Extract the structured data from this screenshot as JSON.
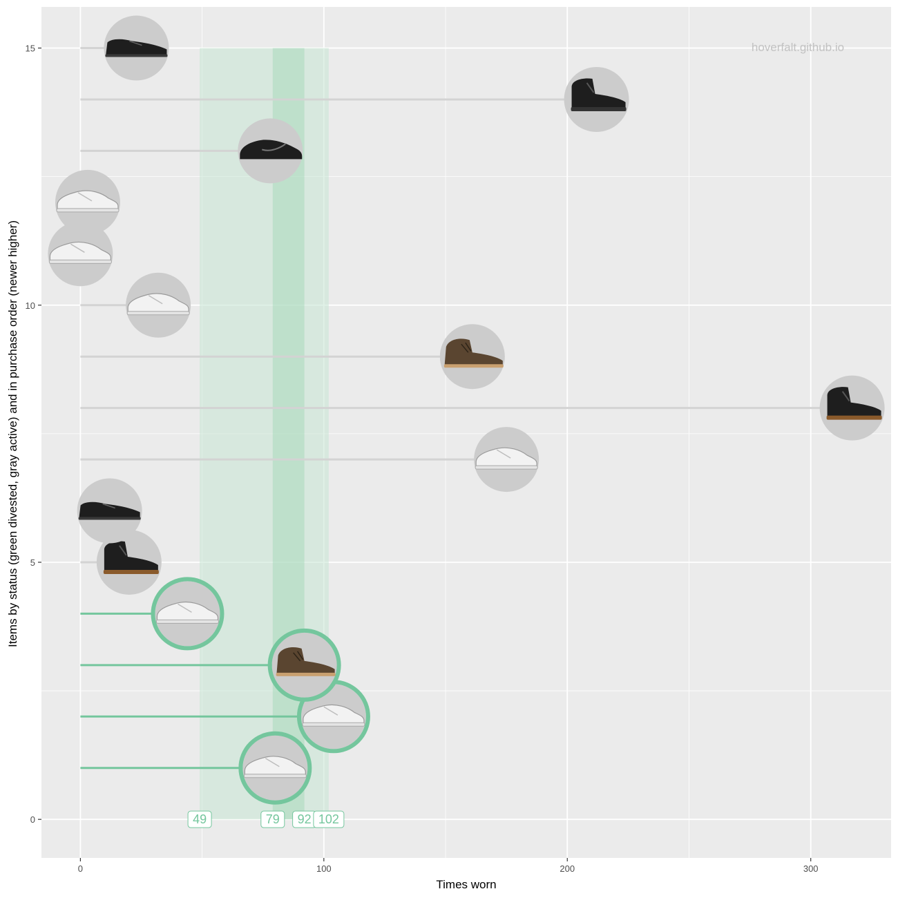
{
  "chart_data": {
    "type": "lollipop",
    "watermark": "hoverfalt.github.io",
    "xlabel": "Times worn",
    "ylabel": "Items by status (green divested, gray active) and in purchase order (newer higher)",
    "xlim": [
      -16,
      333
    ],
    "ylim": [
      -0.75,
      15.8
    ],
    "x_ticks": [
      0,
      100,
      200,
      300
    ],
    "y_ticks": [
      0,
      5,
      10,
      15
    ],
    "grid": true,
    "colors": {
      "panel": "#ebebeb",
      "grid": "#ffffff",
      "active": "#d3d3d3",
      "divested": "#74c69d",
      "band_light": "#c7e6d3",
      "band_dark": "#9fd6b4",
      "shoe_black": "#1e1e1e",
      "shoe_brown": "#5a4530",
      "shoe_white": "#f2f2f2"
    },
    "items": [
      {
        "y": 1,
        "x": 80,
        "status": "divested",
        "shoe": "white-sneaker"
      },
      {
        "y": 2,
        "x": 104,
        "status": "divested",
        "shoe": "white-sneaker"
      },
      {
        "y": 3,
        "x": 92,
        "status": "divested",
        "shoe": "brown-boot"
      },
      {
        "y": 4,
        "x": 44,
        "status": "divested",
        "shoe": "white-sneaker"
      },
      {
        "y": 5,
        "x": 20,
        "status": "active",
        "shoe": "black-boot"
      },
      {
        "y": 6,
        "x": 12,
        "status": "active",
        "shoe": "black-dress-shoe"
      },
      {
        "y": 7,
        "x": 175,
        "status": "active",
        "shoe": "white-sneaker"
      },
      {
        "y": 8,
        "x": 317,
        "status": "active",
        "shoe": "black-boot"
      },
      {
        "y": 9,
        "x": 161,
        "status": "active",
        "shoe": "brown-boot"
      },
      {
        "y": 10,
        "x": 32,
        "status": "active",
        "shoe": "white-sneaker"
      },
      {
        "y": 11,
        "x": 0,
        "status": "active",
        "shoe": "white-sneaker"
      },
      {
        "y": 12,
        "x": 3,
        "status": "active",
        "shoe": "white-sneaker"
      },
      {
        "y": 13,
        "x": 78,
        "status": "active",
        "shoe": "black-running-shoe"
      },
      {
        "y": 14,
        "x": 212,
        "status": "active",
        "shoe": "black-winter-boot"
      },
      {
        "y": 15,
        "x": 23,
        "status": "active",
        "shoe": "black-dress-shoe"
      }
    ],
    "bands": [
      {
        "from": 49,
        "to": 102,
        "shade": "light"
      },
      {
        "from": 79,
        "to": 92,
        "shade": "dark"
      }
    ],
    "band_top": 15,
    "quantile_labels": [
      "49",
      "79",
      "92",
      "102"
    ]
  }
}
